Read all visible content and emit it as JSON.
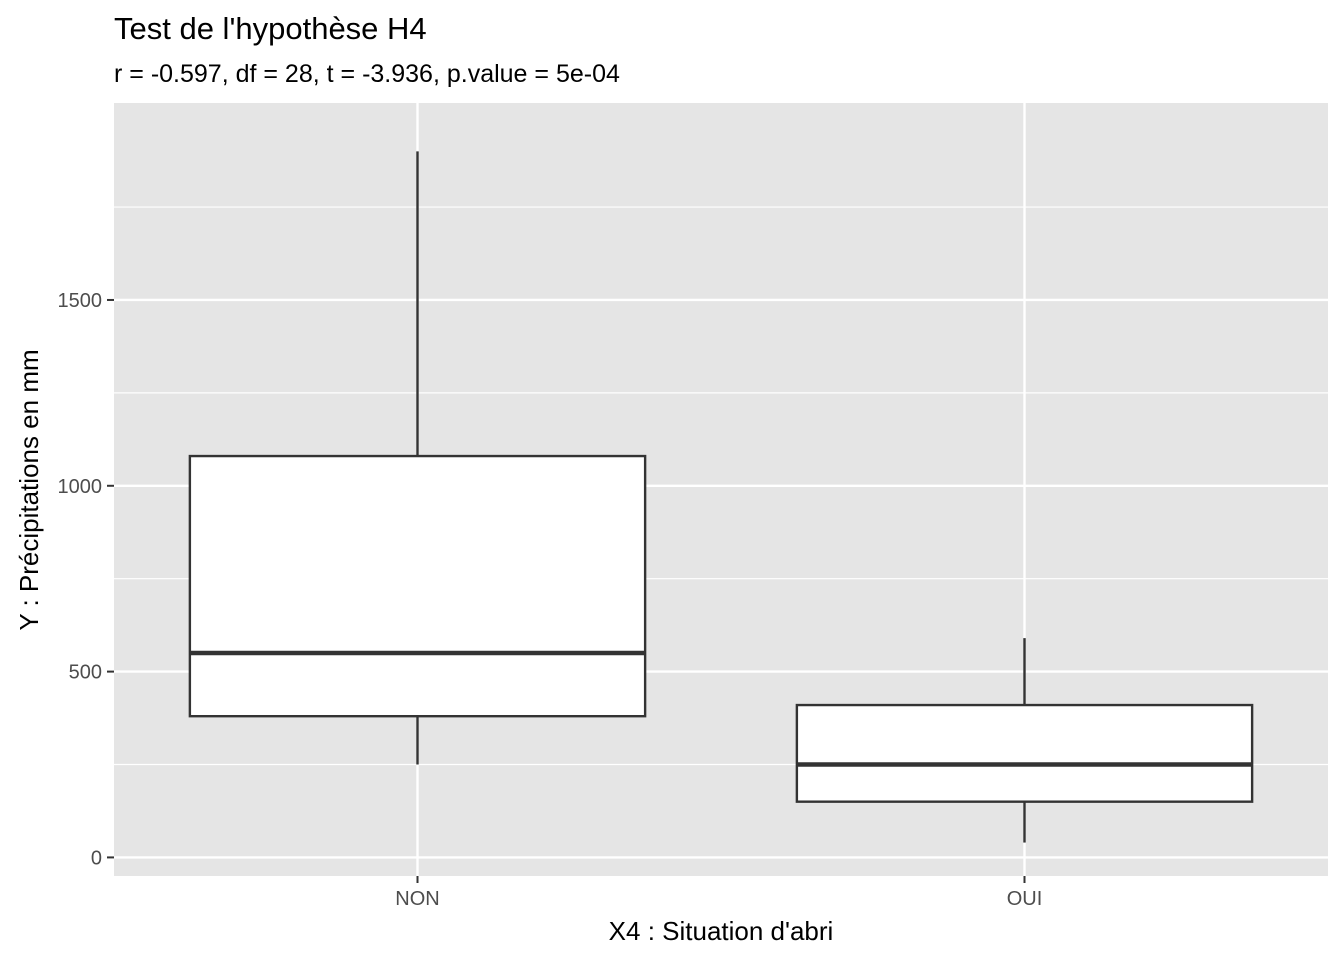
{
  "chart_data": {
    "type": "boxplot",
    "title": "Test de l'hypothèse H4",
    "subtitle": "r = -0.597, df = 28, t = -3.936, p.value = 5e-04",
    "xlabel": "X4 : Situation d'abri",
    "ylabel": "Y : Précipitations en mm",
    "categories": [
      "NON",
      "OUI"
    ],
    "y_ticks": [
      0,
      500,
      1000,
      1500
    ],
    "y_tick_labels": [
      "0",
      "500",
      "1000",
      "1500"
    ],
    "ylim": [
      -50,
      2030
    ],
    "grid": true,
    "boxes": [
      {
        "category": "NON",
        "min": 250,
        "q1": 380,
        "median": 550,
        "q3": 1080,
        "max": 1900
      },
      {
        "category": "OUI",
        "min": 40,
        "q1": 150,
        "median": 250,
        "q3": 410,
        "max": 590
      }
    ],
    "colors": {
      "panel_background": "#e5e5e5",
      "grid": "#ffffff",
      "box_fill": "#ffffff",
      "box_stroke": "#333333",
      "tick": "#333333"
    }
  }
}
